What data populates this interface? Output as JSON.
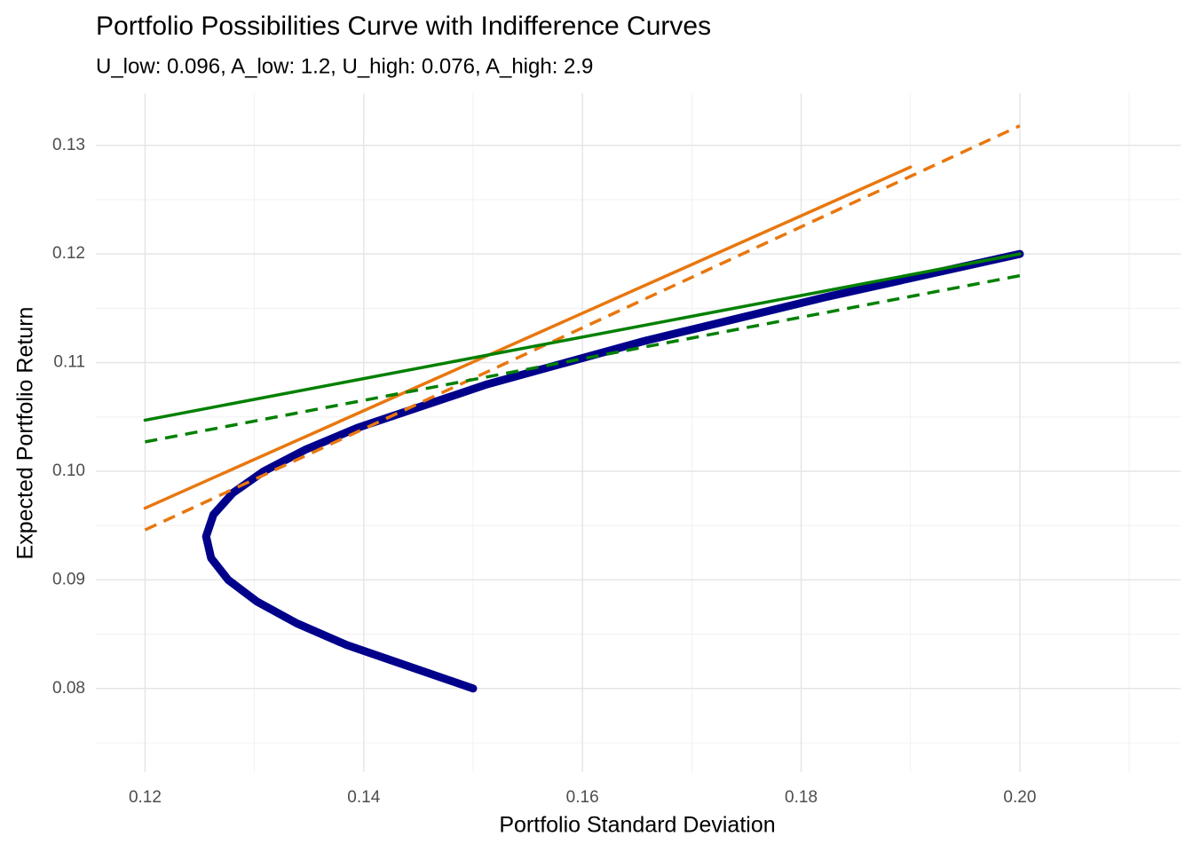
{
  "chart_data": {
    "type": "line",
    "title": "Portfolio Possibilities Curve with Indifference Curves",
    "subtitle": "U_low: 0.096, A_low: 1.2, U_high: 0.076, A_high: 2.9",
    "x_label": "Portfolio Standard Deviation",
    "y_label": "Expected Portfolio Return",
    "xlim": [
      0.1155,
      0.2147
    ],
    "ylim": [
      0.0723,
      0.1348
    ],
    "xticks": [
      0.12,
      0.14,
      0.16,
      0.18,
      {
        "value": 0.2,
        "label": "0.20"
      }
    ],
    "yticks": [
      0.08,
      0.09,
      {
        "value": 0.1,
        "label": "0.10"
      },
      0.11,
      0.12,
      0.13
    ],
    "x_minor_grid": [
      0.13,
      0.15,
      0.17,
      0.19,
      0.21
    ],
    "y_minor_grid": [
      0.075,
      0.085,
      0.095,
      0.105,
      0.115,
      0.125
    ],
    "grid": true,
    "series": [
      {
        "color": "#00008b",
        "dashed": false,
        "width": 9,
        "x": [
          0.2,
          0.18211,
          0.16571,
          0.15128,
          0.13943,
          0.13469,
          0.13086,
          0.12803,
          0.12625,
          0.12558,
          0.12604,
          0.1276,
          0.13023,
          0.13387,
          0.13844,
          0.15
        ],
        "values": [
          0.12,
          0.116,
          0.112,
          0.108,
          0.104,
          0.102,
          0.1,
          0.098,
          0.096,
          0.094,
          0.092,
          0.09,
          0.088,
          0.086,
          0.084,
          0.08
        ]
      },
      {
        "color": "#e8770e",
        "dashed": false,
        "width": 3.5,
        "x": [
          0.12,
          0.19
        ],
        "values": [
          0.0966,
          0.128
        ]
      },
      {
        "color": "#e8770e",
        "dashed": true,
        "width": 3.5,
        "x": [
          0.12,
          0.2
        ],
        "values": [
          0.0946,
          0.1318
        ]
      },
      {
        "color": "#008000",
        "dashed": false,
        "width": 3.5,
        "x": [
          0.12,
          0.2
        ],
        "values": [
          0.1047,
          0.12
        ]
      },
      {
        "color": "#008000",
        "dashed": true,
        "width": 3.5,
        "x": [
          0.12,
          0.2
        ],
        "values": [
          0.1027,
          0.118
        ]
      }
    ]
  }
}
